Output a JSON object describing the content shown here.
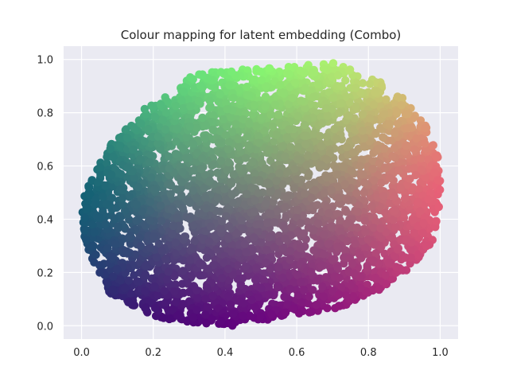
{
  "chart_data": {
    "type": "scatter",
    "title": "Colour mapping for latent embedding (Combo)",
    "xlabel": "",
    "ylabel": "",
    "xlim": [
      -0.05,
      1.05
    ],
    "ylim": [
      -0.05,
      1.05
    ],
    "xticks": [
      "0.0",
      "0.2",
      "0.4",
      "0.6",
      "0.8",
      "1.0"
    ],
    "yticks": [
      "0.0",
      "0.2",
      "0.4",
      "0.6",
      "0.8",
      "1.0"
    ],
    "grid": true,
    "legend": "none",
    "background": "#eaeaf2",
    "description_colors": {
      "bottom_left": "#2a0a6e",
      "top_left": "#30d08a",
      "top": "#88ff70",
      "top_right": "#e8e070",
      "right": "#f55078",
      "bottom_right": "#c0107a",
      "left": "#005a70",
      "bottom": "#6a0080"
    },
    "cloud_outline": [
      [
        0.0,
        0.45
      ],
      [
        0.02,
        0.55
      ],
      [
        0.06,
        0.65
      ],
      [
        0.12,
        0.74
      ],
      [
        0.18,
        0.82
      ],
      [
        0.26,
        0.88
      ],
      [
        0.3,
        0.94
      ],
      [
        0.4,
        0.96
      ],
      [
        0.55,
        0.97
      ],
      [
        0.7,
        0.99
      ],
      [
        0.82,
        0.93
      ],
      [
        0.9,
        0.85
      ],
      [
        0.96,
        0.75
      ],
      [
        1.0,
        0.62
      ],
      [
        1.0,
        0.45
      ],
      [
        0.98,
        0.32
      ],
      [
        0.92,
        0.22
      ],
      [
        0.82,
        0.12
      ],
      [
        0.7,
        0.06
      ],
      [
        0.55,
        0.03
      ],
      [
        0.42,
        0.0
      ],
      [
        0.3,
        0.01
      ],
      [
        0.18,
        0.04
      ],
      [
        0.08,
        0.12
      ],
      [
        0.03,
        0.25
      ],
      [
        0.0,
        0.35
      ]
    ]
  }
}
